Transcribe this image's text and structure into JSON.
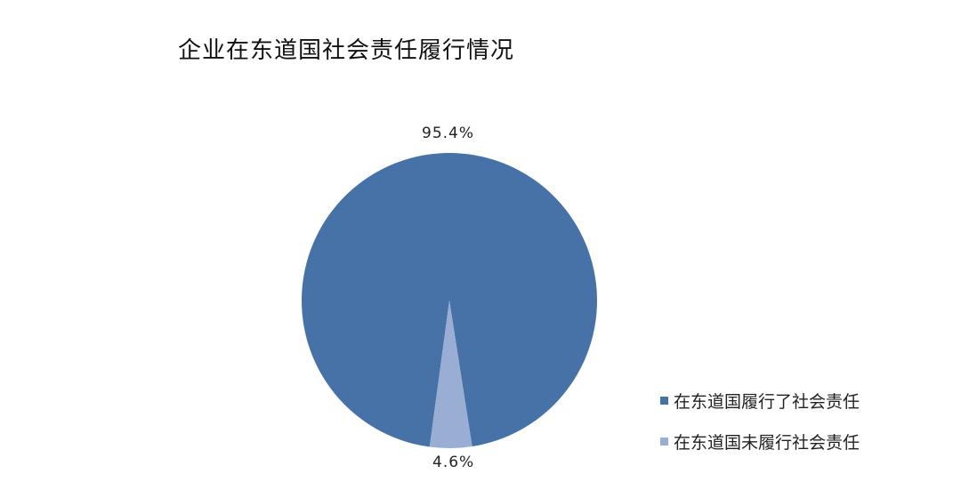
{
  "chart_data": {
    "type": "pie",
    "title": "企业在东道国社会责任履行情况",
    "slices": [
      {
        "name": "在东道国履行了社会责任",
        "value": 95.4,
        "label": "95.4%",
        "color": "#4672A8"
      },
      {
        "name": "在东道国未履行社会责任",
        "value": 4.6,
        "label": "4.6%",
        "color": "#9AAED4"
      }
    ],
    "legend": "right-bottom"
  }
}
